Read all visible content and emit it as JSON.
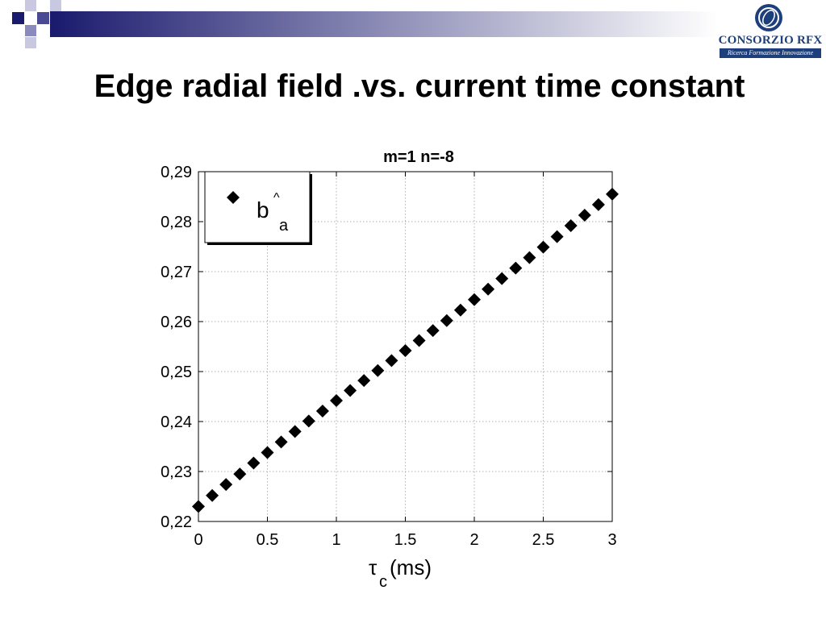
{
  "colors": {
    "banner_start": "#1a1a6e",
    "banner_end": "#ffffff",
    "logo_blue": "#1d3f7c",
    "marker": "#000000",
    "grid": "#b0b0b0"
  },
  "logo": {
    "name": "CONSORZIO RFX",
    "tagline": "Ricerca Formazione Innovazione"
  },
  "slide": {
    "title": "Edge radial field .vs. current time constant"
  },
  "chart_data": {
    "type": "scatter",
    "title": "m=1 n=-8",
    "xlabel_symbol": "τ",
    "xlabel_sub": "c",
    "xlabel_unit": "(ms)",
    "ylabel": "",
    "xlim": [
      0,
      3
    ],
    "ylim": [
      0.22,
      0.29
    ],
    "grid": true,
    "legend_placement": "top-left",
    "x_ticks": [
      0,
      0.5,
      1,
      1.5,
      2,
      2.5,
      3
    ],
    "x_tick_labels": [
      "0",
      "0.5",
      "1",
      "1.5",
      "2",
      "2.5",
      "3"
    ],
    "y_ticks": [
      0.22,
      0.23,
      0.24,
      0.25,
      0.26,
      0.27,
      0.28,
      0.29
    ],
    "y_tick_labels": [
      "0,22",
      "0,23",
      "0,24",
      "0,25",
      "0,26",
      "0,27",
      "0,28",
      "0,29"
    ],
    "series": [
      {
        "legend_base": "b",
        "legend_hat": "^",
        "legend_sub": "a",
        "marker": "diamond",
        "x": [
          0,
          0.1,
          0.2,
          0.3,
          0.4,
          0.5,
          0.6,
          0.7,
          0.8,
          0.9,
          1.0,
          1.1,
          1.2,
          1.3,
          1.4,
          1.5,
          1.6,
          1.7,
          1.8,
          1.9,
          2.0,
          2.1,
          2.2,
          2.3,
          2.4,
          2.5,
          2.6,
          2.7,
          2.8,
          2.9,
          3.0
        ],
        "y": [
          0.223,
          0.2252,
          0.2274,
          0.2295,
          0.2317,
          0.2338,
          0.2359,
          0.238,
          0.2401,
          0.2421,
          0.2442,
          0.2462,
          0.2482,
          0.2502,
          0.2522,
          0.2542,
          0.2562,
          0.2582,
          0.2602,
          0.2623,
          0.2644,
          0.2665,
          0.2686,
          0.2707,
          0.2728,
          0.2749,
          0.277,
          0.2792,
          0.2813,
          0.2834,
          0.2855
        ]
      }
    ]
  }
}
